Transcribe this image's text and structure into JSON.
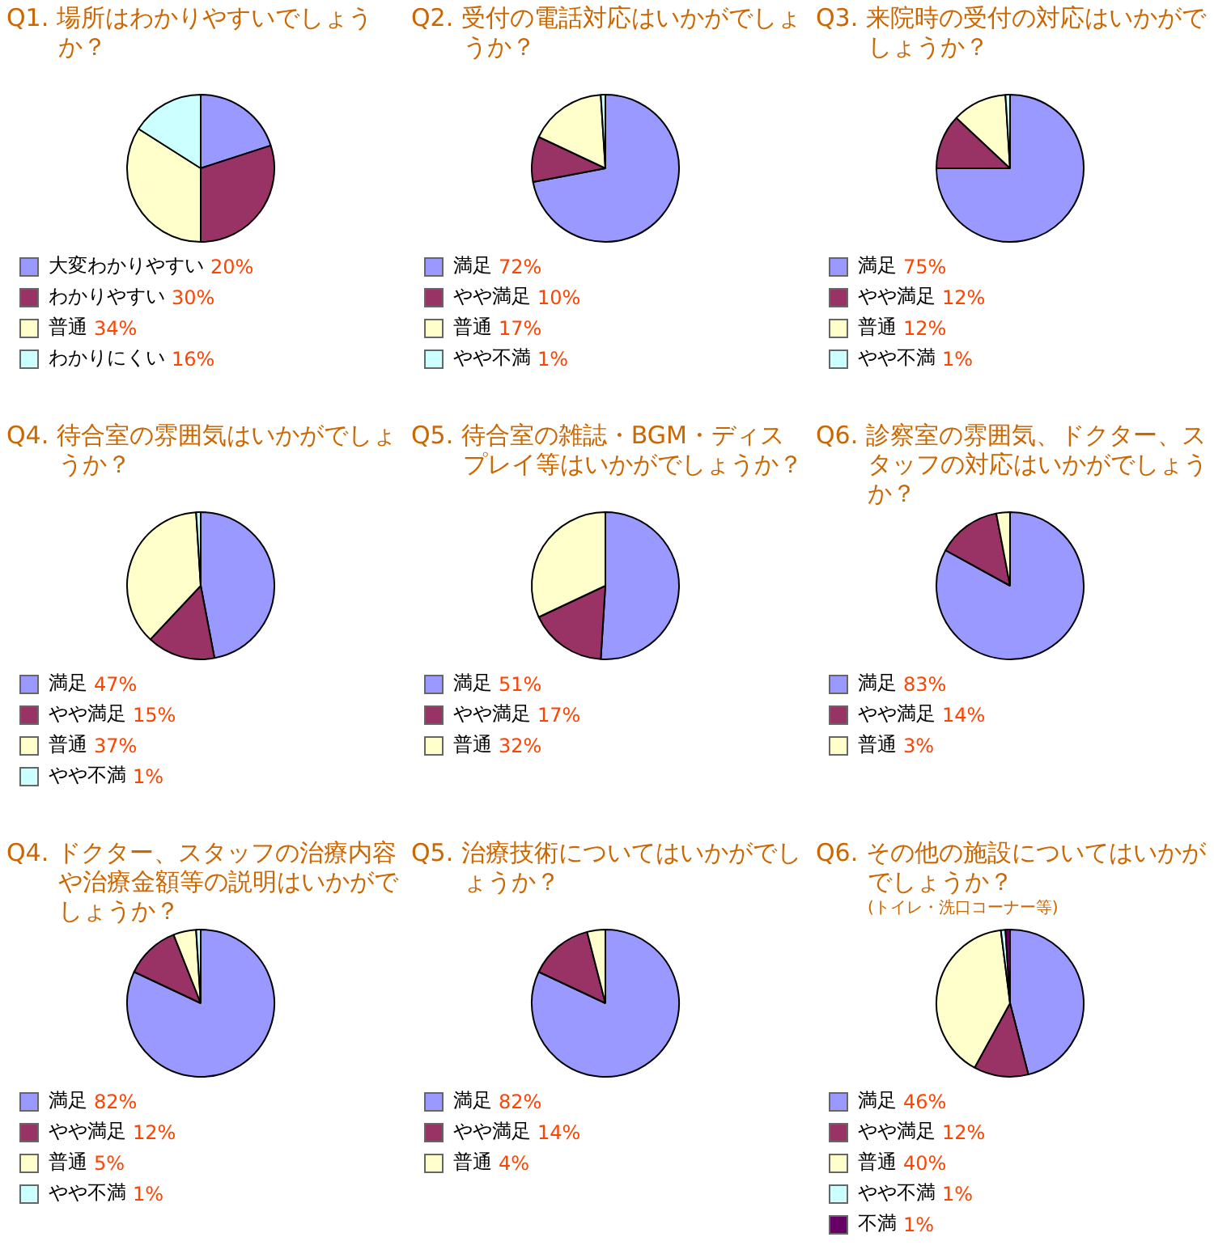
{
  "chart_data": [
    {
      "type": "pie",
      "title": "Q1. 場所はわかりやすいでしょうか？",
      "categories": [
        "大変わかりやすい",
        "わかりやすい",
        "普通",
        "わかりにくい"
      ],
      "values": [
        20,
        30,
        34,
        16
      ],
      "value_labels": [
        "20%",
        "30%",
        "34%",
        "16%"
      ],
      "colors": [
        "#9999ff",
        "#993366",
        "#ffffcc",
        "#ccffff"
      ],
      "legend": "bottom"
    },
    {
      "type": "pie",
      "title": "Q2. 受付の電話対応はいかがでしょうか？",
      "categories": [
        "満足",
        "やや満足",
        "普通",
        "やや不満"
      ],
      "values": [
        72,
        10,
        17,
        1
      ],
      "value_labels": [
        "72%",
        "10%",
        "17%",
        "1%"
      ],
      "colors": [
        "#9999ff",
        "#993366",
        "#ffffcc",
        "#ccffff"
      ],
      "legend": "bottom"
    },
    {
      "type": "pie",
      "title": "Q3. 来院時の受付の対応はいかがでしょうか？",
      "categories": [
        "満足",
        "やや満足",
        "普通",
        "やや不満"
      ],
      "values": [
        75,
        12,
        12,
        1
      ],
      "value_labels": [
        "75%",
        "12%",
        "12%",
        "1%"
      ],
      "colors": [
        "#9999ff",
        "#993366",
        "#ffffcc",
        "#ccffff"
      ],
      "legend": "bottom"
    },
    {
      "type": "pie",
      "title": "Q4. 待合室の雰囲気はいかがでしょうか？",
      "categories": [
        "満足",
        "やや満足",
        "普通",
        "やや不満"
      ],
      "values": [
        47,
        15,
        37,
        1
      ],
      "value_labels": [
        "47%",
        "15%",
        "37%",
        "1%"
      ],
      "colors": [
        "#9999ff",
        "#993366",
        "#ffffcc",
        "#ccffff"
      ],
      "legend": "bottom"
    },
    {
      "type": "pie",
      "title": "Q5. 待合室の雑誌・BGM・ディスプレイ等はいかがでしょうか？",
      "categories": [
        "満足",
        "やや満足",
        "普通"
      ],
      "values": [
        51,
        17,
        32
      ],
      "value_labels": [
        "51%",
        "17%",
        "32%"
      ],
      "colors": [
        "#9999ff",
        "#993366",
        "#ffffcc"
      ],
      "legend": "bottom"
    },
    {
      "type": "pie",
      "title": "Q6. 診察室の雰囲気、ドクター、スタッフの対応はいかがでしょうか？",
      "categories": [
        "満足",
        "やや満足",
        "普通"
      ],
      "values": [
        83,
        14,
        3
      ],
      "value_labels": [
        "83%",
        "14%",
        "3%"
      ],
      "colors": [
        "#9999ff",
        "#993366",
        "#ffffcc"
      ],
      "legend": "bottom"
    },
    {
      "type": "pie",
      "title": "Q4. ドクター、スタッフの治療内容や治療金額等の説明はいかがでしょうか？",
      "categories": [
        "満足",
        "やや満足",
        "普通",
        "やや不満"
      ],
      "values": [
        82,
        12,
        5,
        1
      ],
      "value_labels": [
        "82%",
        "12%",
        "5%",
        "1%"
      ],
      "colors": [
        "#9999ff",
        "#993366",
        "#ffffcc",
        "#ccffff"
      ],
      "legend": "bottom"
    },
    {
      "type": "pie",
      "title": "Q5. 治療技術についてはいかがでしょうか？",
      "categories": [
        "満足",
        "やや満足",
        "普通"
      ],
      "values": [
        82,
        14,
        4
      ],
      "value_labels": [
        "82%",
        "14%",
        "4%"
      ],
      "colors": [
        "#9999ff",
        "#993366",
        "#ffffcc"
      ],
      "legend": "bottom"
    },
    {
      "type": "pie",
      "title": "Q6. その他の施設についてはいかがでしょうか？",
      "subtitle": "(トイレ・洗口コーナー等)",
      "categories": [
        "満足",
        "やや満足",
        "普通",
        "やや不満",
        "不満"
      ],
      "values": [
        46,
        12,
        40,
        1,
        1
      ],
      "value_labels": [
        "46%",
        "12%",
        "40%",
        "1%",
        "1%"
      ],
      "colors": [
        "#9999ff",
        "#993366",
        "#ffffcc",
        "#ccffff",
        "#660066"
      ],
      "legend": "bottom"
    }
  ]
}
